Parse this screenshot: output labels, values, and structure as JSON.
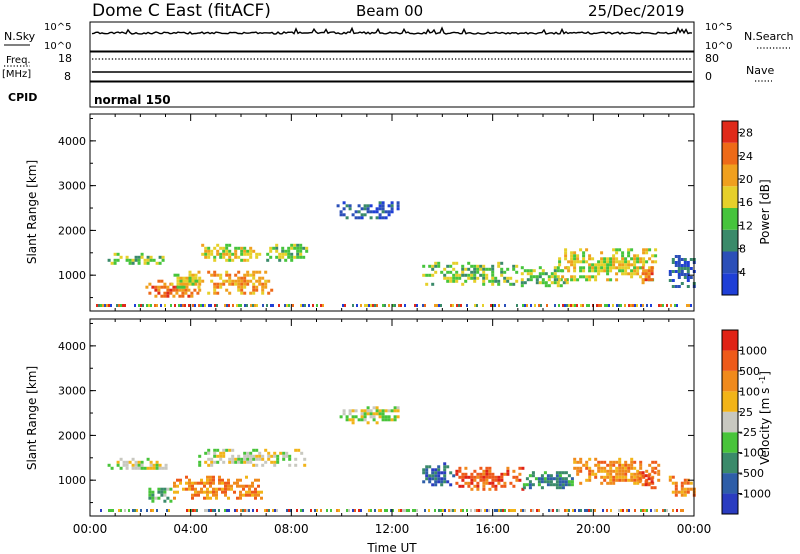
{
  "header": {
    "station": "Dome C East (fitACF)",
    "beam": "Beam 00",
    "date": "25/Dec/2019"
  },
  "aux_panels": {
    "nsky_label": "N.Sky",
    "nsky_ticks": [
      "10^5",
      "10^0"
    ],
    "nsearch_label": "N.Search",
    "nsearch_ticks": [
      "10^5",
      "10^0"
    ],
    "freq_label": "Freq.",
    "freq_unit": "[MHz]",
    "freq_ticks": [
      "18",
      "8"
    ],
    "nave_label": "Nave",
    "nave_ticks": [
      "80",
      "0"
    ],
    "cpid_label": "CPID",
    "cpid_value": "normal 150"
  },
  "colors": {
    "power": [
      "#1f3fd6",
      "#2b4fb8",
      "#3a8a6a",
      "#46c43c",
      "#e6d02a",
      "#f0a01e",
      "#ee6a18",
      "#e02a1a"
    ],
    "velocity": [
      "#2a3cc0",
      "#2e5ea8",
      "#3a8a6a",
      "#48c43a",
      "#c8c8c0",
      "#f2b418",
      "#f08a1c",
      "#ee5a1a",
      "#e02216"
    ]
  },
  "chart_data": [
    {
      "type": "heatmap",
      "name_panel": "power",
      "xlabel": "",
      "ylabel": "Slant Range [km]",
      "xlim": [
        0,
        24
      ],
      "ylim": [
        200,
        4600
      ],
      "yticks": [
        "1000",
        "2000",
        "3000",
        "4000"
      ],
      "colorbar": {
        "label": "Power [dB]",
        "ticks": [
          "4",
          "8",
          "12",
          "16",
          "20",
          "24",
          "28"
        ],
        "range": [
          0,
          30
        ]
      },
      "regions": [
        {
          "x": [
            0.7,
            3.2
          ],
          "y": [
            1250,
            1500
          ],
          "level": 3
        },
        {
          "x": [
            2.2,
            4.3
          ],
          "y": [
            500,
            900
          ],
          "level": 6
        },
        {
          "x": [
            3.2,
            4.5
          ],
          "y": [
            700,
            1100
          ],
          "level": 4
        },
        {
          "x": [
            4.3,
            6.8
          ],
          "y": [
            1350,
            1700
          ],
          "level": 4
        },
        {
          "x": [
            4.3,
            7.2
          ],
          "y": [
            600,
            1100
          ],
          "level": 5
        },
        {
          "x": [
            7.0,
            8.6
          ],
          "y": [
            1350,
            1700
          ],
          "level": 3
        },
        {
          "x": [
            9.8,
            12.3
          ],
          "y": [
            2300,
            2650
          ],
          "level": 1
        },
        {
          "x": [
            13.2,
            17.0
          ],
          "y": [
            800,
            1300
          ],
          "level": 3
        },
        {
          "x": [
            17.0,
            19.0
          ],
          "y": [
            750,
            1200
          ],
          "level": 3
        },
        {
          "x": [
            18.6,
            22.5
          ],
          "y": [
            900,
            1600
          ],
          "level": 4
        },
        {
          "x": [
            21.8,
            22.4
          ],
          "y": [
            850,
            1200
          ],
          "level": 6
        },
        {
          "x": [
            23.0,
            24.0
          ],
          "y": [
            750,
            1450
          ],
          "level": 1
        }
      ]
    },
    {
      "type": "heatmap",
      "name_panel": "velocity",
      "xlabel": "Time UT",
      "ylabel": "Slant Range [km]",
      "xlim": [
        0,
        24
      ],
      "ylim": [
        200,
        4600
      ],
      "xticks": [
        "00:00",
        "04:00",
        "08:00",
        "12:00",
        "16:00",
        "20:00",
        "00:00"
      ],
      "yticks": [
        "1000",
        "2000",
        "3000",
        "4000"
      ],
      "colorbar": {
        "label": "Velocity [m s^-1]",
        "ticks": [
          "1000",
          "500",
          "100",
          "25",
          "-25",
          "-100",
          "-500",
          "-1000"
        ]
      },
      "regions": [
        {
          "x": [
            0.7,
            3.2
          ],
          "y": [
            1250,
            1500
          ],
          "level": 4
        },
        {
          "x": [
            2.2,
            3.3
          ],
          "y": [
            500,
            900
          ],
          "level": 3
        },
        {
          "x": [
            3.3,
            6.8
          ],
          "y": [
            600,
            1100
          ],
          "level": 6
        },
        {
          "x": [
            4.3,
            8.6
          ],
          "y": [
            1350,
            1700
          ],
          "level": 4
        },
        {
          "x": [
            9.8,
            12.3
          ],
          "y": [
            2300,
            2650
          ],
          "level": 4
        },
        {
          "x": [
            13.2,
            14.4
          ],
          "y": [
            900,
            1400
          ],
          "level": 1
        },
        {
          "x": [
            14.4,
            17.2
          ],
          "y": [
            800,
            1300
          ],
          "level": 7
        },
        {
          "x": [
            17.2,
            19.2
          ],
          "y": [
            800,
            1200
          ],
          "level": 2
        },
        {
          "x": [
            19.2,
            22.6
          ],
          "y": [
            900,
            1500
          ],
          "level": 6
        },
        {
          "x": [
            21.8,
            22.4
          ],
          "y": [
            850,
            1200
          ],
          "level": 7
        },
        {
          "x": [
            23.0,
            24.0
          ],
          "y": [
            650,
            1100
          ],
          "level": 6
        }
      ]
    }
  ]
}
